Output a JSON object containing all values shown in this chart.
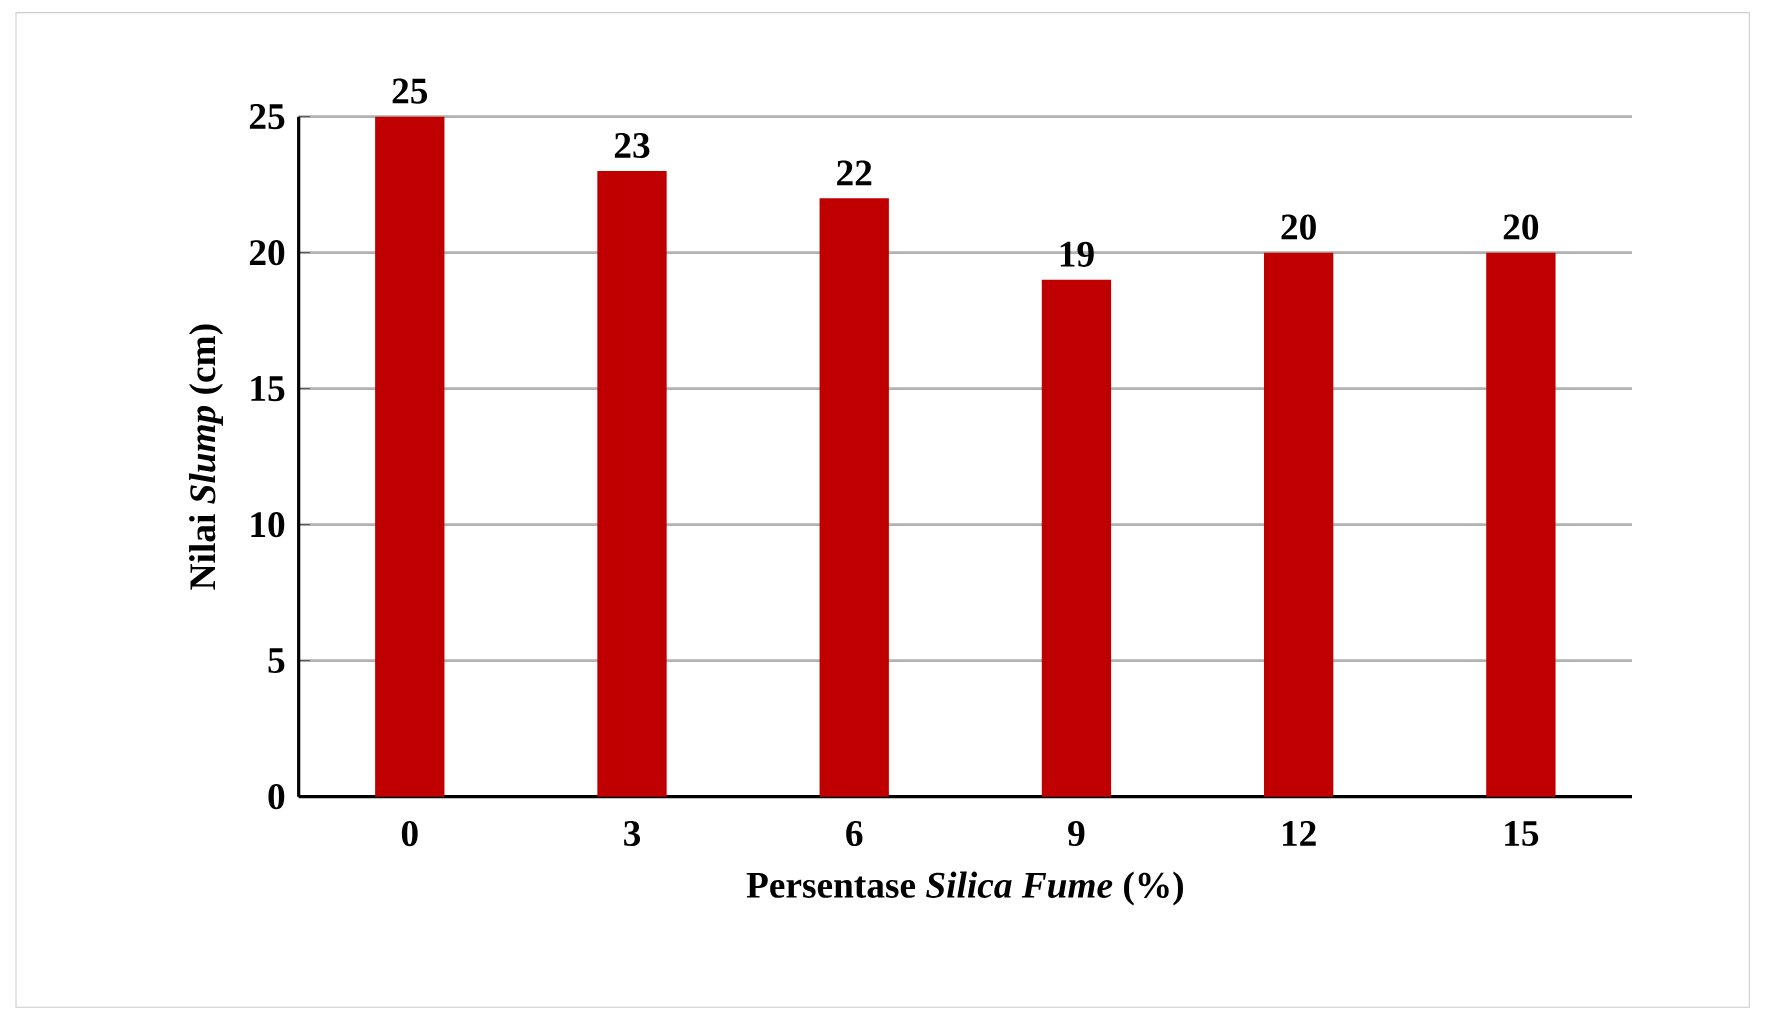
{
  "chart_data": {
    "type": "bar",
    "xlabel": "Persentase *Silica Fume* (%)",
    "ylabel": "Nilai *Slump* (cm)",
    "categories": [
      "0",
      "3",
      "6",
      "9",
      "12",
      "15"
    ],
    "values": [
      25,
      23,
      22,
      19,
      20,
      20
    ],
    "color": "#c00000",
    "ylim": [
      0,
      25
    ],
    "yticks": [
      0,
      5,
      10,
      15,
      20,
      25
    ],
    "grid": "y",
    "data_labels": true
  }
}
